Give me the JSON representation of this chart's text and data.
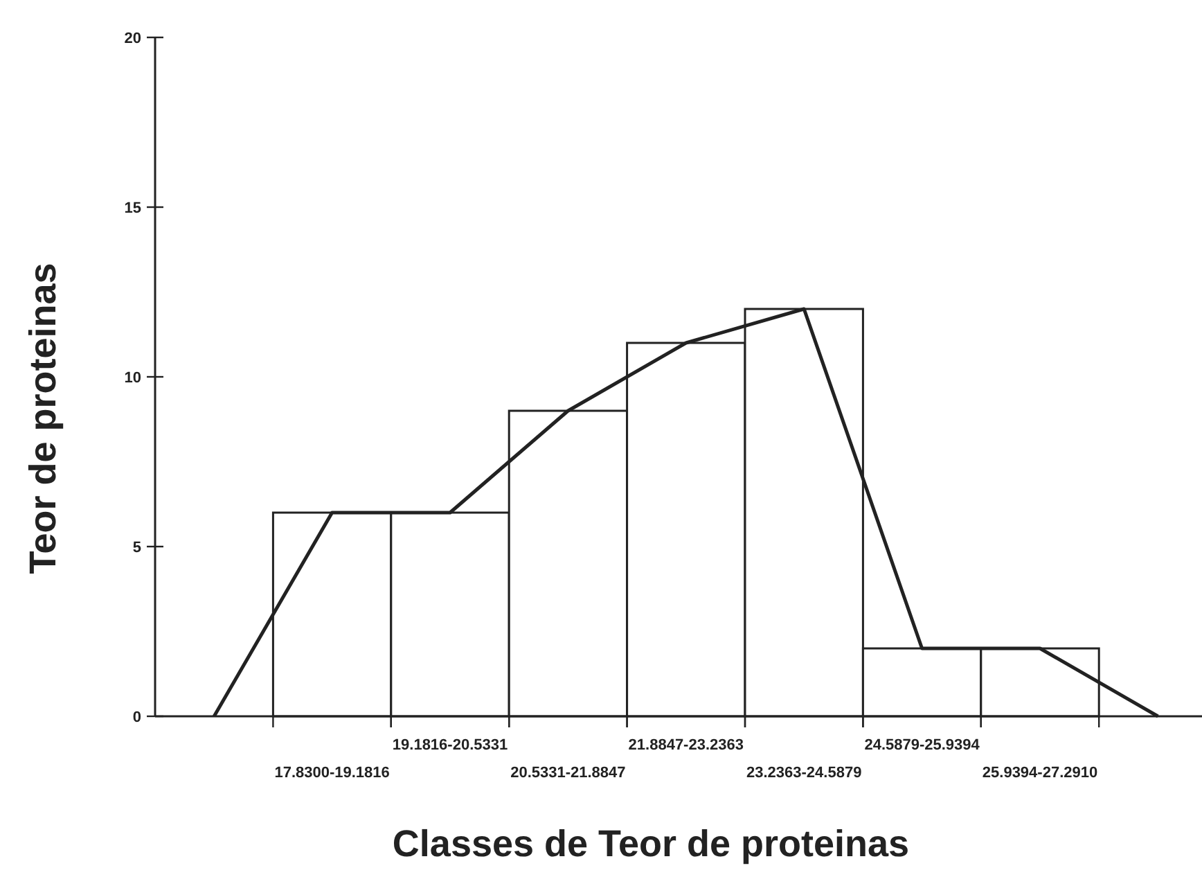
{
  "chart_data": {
    "type": "bar",
    "xlabel": "Classes de Teor de proteinas",
    "ylabel": "Teor de proteinas",
    "categories": [
      null,
      "17.8300-19.1816",
      "19.1816-20.5331",
      "20.5331-21.8847",
      "21.8847-23.2363",
      "23.2363-24.5879",
      "24.5879-25.9394",
      "25.9394-27.2910",
      null
    ],
    "series": [
      {
        "color": "#ffffff",
        "values": [
          null,
          6,
          6,
          9,
          11,
          12,
          2,
          2,
          null
        ]
      },
      {
        "type": "line",
        "color": "#222222",
        "values": [
          0,
          6,
          6,
          9,
          11,
          12,
          2,
          2,
          0
        ]
      }
    ],
    "ylim": [
      0,
      20
    ],
    "yticks": [
      0,
      5,
      10,
      15,
      20
    ],
    "grid": false,
    "marker": "none",
    "line_style": "solid"
  }
}
